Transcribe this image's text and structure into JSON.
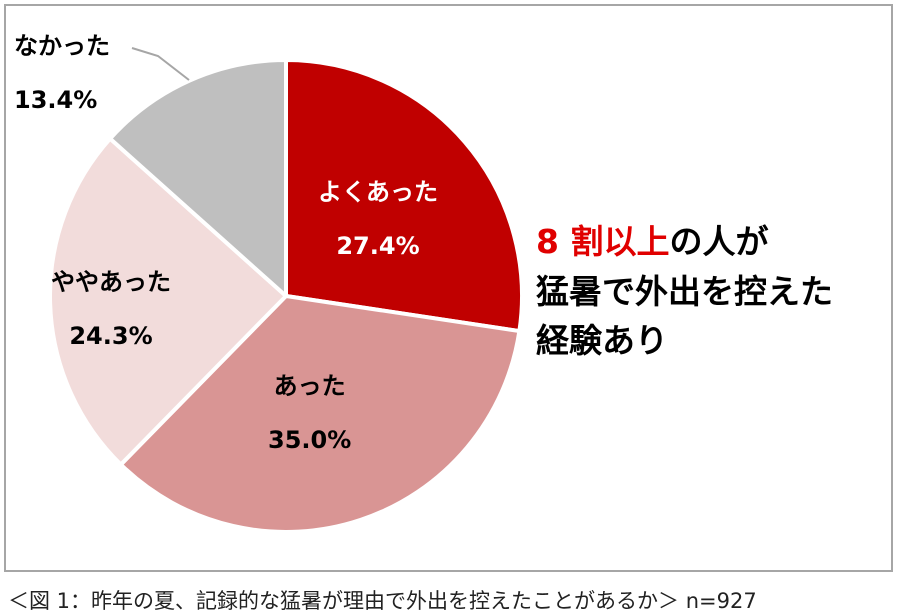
{
  "chart_data": {
    "type": "pie",
    "categories": [
      "よくあった",
      "あった",
      "ややあった",
      "なかった"
    ],
    "values": [
      27.4,
      35.0,
      24.3,
      13.4
    ],
    "value_labels": [
      "27.4%",
      "35.0%",
      "24.3%",
      "13.4%"
    ],
    "colors": [
      "#c00000",
      "#d99594",
      "#f2dcdb",
      "#bfbfbf"
    ],
    "start": "12 o'clock, clockwise"
  },
  "headline": {
    "red_part": "8 割以上",
    "line1_rest": "の人が",
    "line2": "猛暑で外出を控えた",
    "line3": "経験あり"
  },
  "caption": "＜図 1：昨年の夏、記録的な猛暑が理由で外出を控えたことがあるか＞ n=927"
}
